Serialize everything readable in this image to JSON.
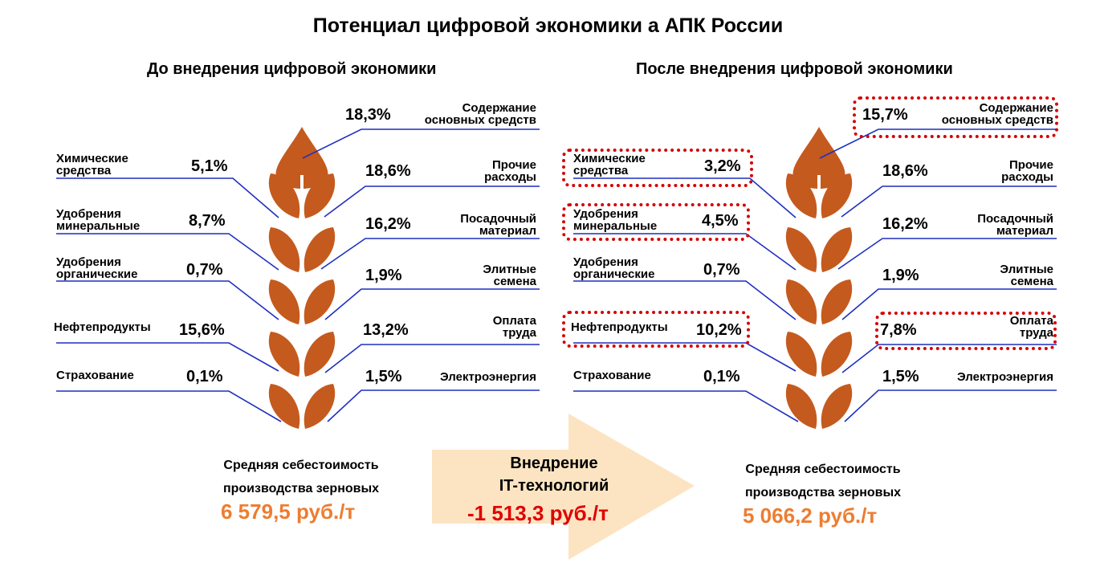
{
  "title": "Потенциал цифровой экономики а АПК  России",
  "before": {
    "subtitle": "До внедрения цифровой экономики",
    "items": [
      {
        "label_lines": [
          "Содержание",
          "основных средств"
        ],
        "value": "18,3%"
      },
      {
        "label_lines": [
          "Химические",
          "средства"
        ],
        "value": "5,1%"
      },
      {
        "label_lines": [
          "Прочие",
          "расходы"
        ],
        "value": "18,6%"
      },
      {
        "label_lines": [
          "Удобрения",
          "минеральные"
        ],
        "value": "8,7%"
      },
      {
        "label_lines": [
          "Посадочный",
          "материал"
        ],
        "value": "16,2%"
      },
      {
        "label_lines": [
          "Удобрения",
          "органические"
        ],
        "value": "0,7%"
      },
      {
        "label_lines": [
          "Элитные",
          "семена"
        ],
        "value": "1,9%"
      },
      {
        "label_lines": [
          "Нефтепродукты"
        ],
        "value": "15,6%"
      },
      {
        "label_lines": [
          "Оплата",
          "труда"
        ],
        "value": "13,2%"
      },
      {
        "label_lines": [
          "Страхование"
        ],
        "value": "0,1%"
      },
      {
        "label_lines": [
          "Электроэнергия"
        ],
        "value": "1,5%"
      }
    ],
    "cost_label": "Средняя себестоимость производства зерновых",
    "cost_value": "6 579,5 руб./т"
  },
  "arrow": {
    "label_lines": [
      "Внедрение",
      "IT-технологий"
    ],
    "value": "-1 513,3 руб./т"
  },
  "after": {
    "subtitle": "После внедрения цифровой экономики",
    "items": [
      {
        "label_lines": [
          "Содержание",
          "основных средств"
        ],
        "value": "15,7%",
        "highlighted": true
      },
      {
        "label_lines": [
          "Химические",
          "средства"
        ],
        "value": "3,2%",
        "highlighted": true
      },
      {
        "label_lines": [
          "Прочие",
          "расходы"
        ],
        "value": "18,6%",
        "highlighted": false
      },
      {
        "label_lines": [
          "Удобрения",
          "минеральные"
        ],
        "value": "4,5%",
        "highlighted": true
      },
      {
        "label_lines": [
          "Посадочный",
          "материал"
        ],
        "value": "16,2%",
        "highlighted": false
      },
      {
        "label_lines": [
          "Удобрения",
          "органические"
        ],
        "value": "0,7%",
        "highlighted": false
      },
      {
        "label_lines": [
          "Элитные",
          "семена"
        ],
        "value": "1,9%",
        "highlighted": false
      },
      {
        "label_lines": [
          "Нефтепродукты"
        ],
        "value": "10,2%",
        "highlighted": true
      },
      {
        "label_lines": [
          "Оплата",
          "труда"
        ],
        "value": "7,8%",
        "highlighted": true
      },
      {
        "label_lines": [
          "Страхование"
        ],
        "value": "0,1%",
        "highlighted": false
      },
      {
        "label_lines": [
          "Электроэнергия"
        ],
        "value": "1,5%",
        "highlighted": false
      }
    ],
    "cost_label": "Средняя себестоимость производства зерновых",
    "cost_value": "5 066,2 руб./т"
  },
  "colors": {
    "grain": "#C55A1E",
    "connector": "#1F2FBF",
    "highlight": "#D50000",
    "cost_value": "#ED7D31",
    "delta_value": "#E00000",
    "arrow_fill": "#FCE4C2"
  }
}
